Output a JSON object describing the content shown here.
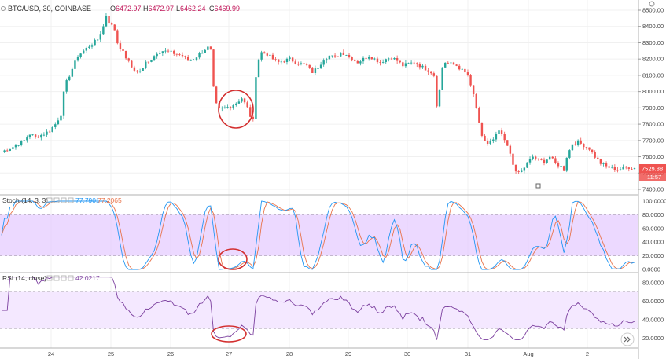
{
  "header": {
    "symbol": "BTC/USD, 30, COINBASE",
    "ohlc": [
      {
        "label": "O",
        "value": "6472.97"
      },
      {
        "label": "H",
        "value": "6472.97"
      },
      {
        "label": "L",
        "value": "6462.24"
      },
      {
        "label": "C",
        "value": "6469.99"
      }
    ]
  },
  "colors": {
    "up": "#26a69a",
    "down": "#ef5350",
    "stoch_k": "#2196f3",
    "stoch_d": "#e8734a",
    "rsi": "#7b3f9e",
    "band_fill": "#e6ccff",
    "annotation": "#d32f2f"
  },
  "chart_data": [
    {
      "type": "candlestick",
      "name": "price",
      "x_ticks": [
        "24",
        "25",
        "26",
        "27",
        "28",
        "29",
        "30",
        "31",
        "Aug",
        "2"
      ],
      "y_ticks": [
        "8500.00",
        "8400.00",
        "8300.00",
        "8200.00",
        "8100.00",
        "8000.00",
        "7900.00",
        "7800.00",
        "7700.00",
        "7600.00",
        "7500.00",
        "7400.00"
      ],
      "ylim": [
        7400,
        8500
      ],
      "last_price_label": "7529.88",
      "countdown_label": "11:57",
      "close_path": [
        [
          0,
          7630
        ],
        [
          4,
          7660
        ],
        [
          8,
          7700
        ],
        [
          10,
          7740
        ],
        [
          12,
          7720
        ],
        [
          15,
          7740
        ],
        [
          17,
          7760
        ],
        [
          19,
          7800
        ],
        [
          21,
          7860
        ],
        [
          22,
          7990
        ],
        [
          23,
          8060
        ],
        [
          25,
          8140
        ],
        [
          27,
          8220
        ],
        [
          29,
          8250
        ],
        [
          31,
          8280
        ],
        [
          34,
          8320
        ],
        [
          36,
          8400
        ],
        [
          37,
          8470
        ],
        [
          38,
          8430
        ],
        [
          40,
          8380
        ],
        [
          41,
          8300
        ],
        [
          44,
          8210
        ],
        [
          46,
          8150
        ],
        [
          48,
          8120
        ],
        [
          50,
          8140
        ],
        [
          51,
          8180
        ],
        [
          53,
          8200
        ],
        [
          55,
          8240
        ],
        [
          57,
          8250
        ],
        [
          60,
          8240
        ],
        [
          62,
          8230
        ],
        [
          64,
          8220
        ],
        [
          66,
          8190
        ],
        [
          68,
          8200
        ],
        [
          70,
          8230
        ],
        [
          72,
          8260
        ],
        [
          73,
          8270
        ],
        [
          74,
          8250
        ],
        [
          74.5,
          8100
        ],
        [
          75,
          8020
        ],
        [
          76,
          7920
        ],
        [
          77,
          7890
        ],
        [
          79,
          7900
        ],
        [
          81,
          7910
        ],
        [
          83,
          7930
        ],
        [
          85,
          7960
        ],
        [
          87,
          7900
        ],
        [
          88,
          7850
        ],
        [
          89,
          7820
        ],
        [
          90,
          8100
        ],
        [
          91,
          8200
        ],
        [
          92,
          8240
        ],
        [
          94,
          8230
        ],
        [
          96,
          8200
        ],
        [
          98,
          8180
        ],
        [
          100,
          8190
        ],
        [
          102,
          8200
        ],
        [
          104,
          8180
        ],
        [
          106,
          8170
        ],
        [
          108,
          8160
        ],
        [
          110,
          8120
        ],
        [
          112,
          8150
        ],
        [
          114,
          8200
        ],
        [
          116,
          8220
        ],
        [
          118,
          8210
        ],
        [
          120,
          8240
        ],
        [
          122,
          8230
        ],
        [
          124,
          8200
        ],
        [
          126,
          8180
        ],
        [
          128,
          8200
        ],
        [
          130,
          8220
        ],
        [
          132,
          8200
        ],
        [
          134,
          8180
        ],
        [
          136,
          8200
        ],
        [
          138,
          8210
        ],
        [
          140,
          8190
        ],
        [
          142,
          8160
        ],
        [
          144,
          8170
        ],
        [
          146,
          8180
        ],
        [
          148,
          8160
        ],
        [
          150,
          8140
        ],
        [
          152,
          8120
        ],
        [
          153,
          8100
        ],
        [
          154,
          7920
        ],
        [
          155,
          8010
        ],
        [
          156,
          8150
        ],
        [
          157,
          8180
        ],
        [
          159,
          8170
        ],
        [
          161,
          8160
        ],
        [
          163,
          8130
        ],
        [
          165,
          8100
        ],
        [
          166,
          8030
        ],
        [
          167,
          7980
        ],
        [
          168,
          7900
        ],
        [
          169,
          7800
        ],
        [
          170,
          7720
        ],
        [
          172,
          7680
        ],
        [
          174,
          7700
        ],
        [
          176,
          7760
        ],
        [
          178,
          7700
        ],
        [
          180,
          7620
        ],
        [
          181,
          7560
        ],
        [
          182,
          7500
        ],
        [
          184,
          7510
        ],
        [
          186,
          7560
        ],
        [
          188,
          7600
        ],
        [
          190,
          7580
        ],
        [
          192,
          7570
        ],
        [
          194,
          7600
        ],
        [
          196,
          7560
        ],
        [
          198,
          7540
        ],
        [
          199,
          7520
        ],
        [
          200,
          7600
        ],
        [
          202,
          7680
        ],
        [
          204,
          7690
        ],
        [
          206,
          7670
        ],
        [
          208,
          7650
        ],
        [
          210,
          7600
        ],
        [
          212,
          7560
        ],
        [
          214,
          7540
        ],
        [
          216,
          7530
        ],
        [
          218,
          7520
        ],
        [
          220,
          7530
        ],
        [
          222,
          7535
        ],
        [
          224,
          7530
        ]
      ]
    },
    {
      "type": "line",
      "name": "stochastic",
      "title": "Stoch (14, 3, 3)",
      "values_label": [
        "77.7901",
        "77.2065"
      ],
      "y_ticks": [
        "100.0000",
        "80.0000",
        "60.0000",
        "40.0000",
        "20.0000",
        "0.0000"
      ],
      "ylim": [
        0,
        100
      ],
      "band": [
        20,
        80
      ]
    },
    {
      "type": "line",
      "name": "rsi",
      "title": "RSI (14, close)",
      "values_label": [
        "42.0217"
      ],
      "y_ticks": [
        "80.0000",
        "60.0000",
        "40.0000",
        "20.0000"
      ],
      "ylim": [
        10,
        90
      ],
      "band": [
        30,
        70
      ]
    }
  ]
}
